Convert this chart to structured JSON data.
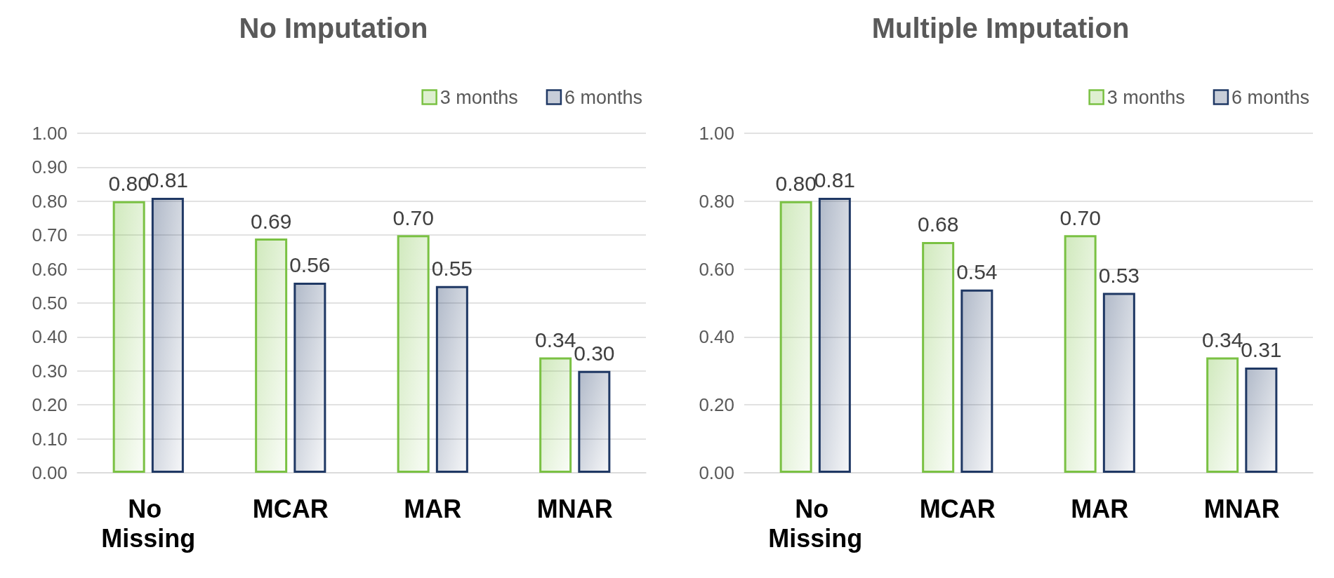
{
  "chart_data": [
    {
      "type": "bar",
      "title": "No Imputation",
      "categories": [
        "No Missing",
        "MCAR",
        "MAR",
        "MNAR"
      ],
      "series": [
        {
          "name": "3 months",
          "color": "#7ac143",
          "values": [
            0.8,
            0.69,
            0.7,
            0.34
          ],
          "value_labels": [
            "0.80",
            "0.69",
            "0.70",
            "0.34"
          ]
        },
        {
          "name": "6 months",
          "color": "#1f3864",
          "values": [
            0.81,
            0.56,
            0.55,
            0.3
          ],
          "value_labels": [
            "0.81",
            "0.56",
            "0.55",
            "0.30"
          ]
        }
      ],
      "ylim": [
        0,
        1
      ],
      "yticks": [
        {
          "value": 0,
          "label": "0.00"
        },
        {
          "value": 0.1,
          "label": "0.10"
        },
        {
          "value": 0.2,
          "label": "0.20"
        },
        {
          "value": 0.3,
          "label": "0.30"
        },
        {
          "value": 0.4,
          "label": "0.40"
        },
        {
          "value": 0.5,
          "label": "0.50"
        },
        {
          "value": 0.6,
          "label": "0.60"
        },
        {
          "value": 0.7,
          "label": "0.70"
        },
        {
          "value": 0.8,
          "label": "0.80"
        },
        {
          "value": 0.9,
          "label": "0.90"
        },
        {
          "value": 1,
          "label": "1.00"
        }
      ],
      "grid": "y",
      "legend": "top right"
    },
    {
      "type": "bar",
      "title": "Multiple Imputation",
      "categories": [
        "No Missing",
        "MCAR",
        "MAR",
        "MNAR"
      ],
      "series": [
        {
          "name": "3 months",
          "color": "#7ac143",
          "values": [
            0.8,
            0.68,
            0.7,
            0.34
          ],
          "value_labels": [
            "0.80",
            "0.68",
            "0.70",
            "0.34"
          ]
        },
        {
          "name": "6 months",
          "color": "#1f3864",
          "values": [
            0.81,
            0.54,
            0.53,
            0.31
          ],
          "value_labels": [
            "0.81",
            "0.54",
            "0.53",
            "0.31"
          ]
        }
      ],
      "ylim": [
        0,
        1
      ],
      "yticks": [
        {
          "value": 0,
          "label": "0.00"
        },
        {
          "value": 0.2,
          "label": "0.20"
        },
        {
          "value": 0.4,
          "label": "0.40"
        },
        {
          "value": 0.6,
          "label": "0.60"
        },
        {
          "value": 0.8,
          "label": "0.80"
        },
        {
          "value": 1,
          "label": "1.00"
        }
      ],
      "grid": "y",
      "legend": "top right"
    }
  ]
}
